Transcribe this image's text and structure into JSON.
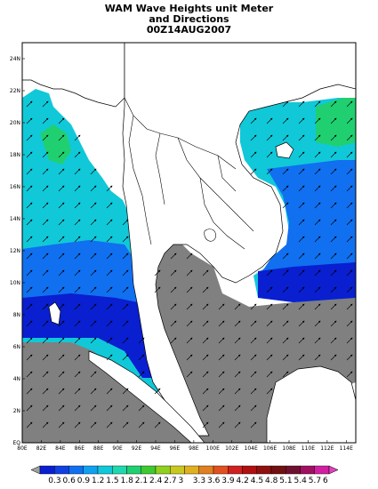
{
  "title": {
    "line1": "WAM Wave Heights unit Meter",
    "line2": "and Directions",
    "line3": "00Z14AUG2007"
  },
  "axes": {
    "lon_ticks": [
      "80E",
      "82E",
      "84E",
      "86E",
      "88E",
      "90E",
      "92E",
      "94E",
      "96E",
      "98E",
      "100E",
      "102E",
      "104E",
      "106E",
      "108E",
      "110E",
      "112E",
      "114E"
    ],
    "lat_ticks": [
      "EQ",
      "2N",
      "4N",
      "6N",
      "8N",
      "10N",
      "12N",
      "14N",
      "16N",
      "18N",
      "20N",
      "22N",
      "24N"
    ],
    "lon_range": [
      80,
      115
    ],
    "lat_range": [
      0,
      25
    ]
  },
  "colorbar": {
    "labels": [
      "0.3",
      "0.6",
      "0.9",
      "1.2",
      "1.5",
      "1.8",
      "2.1",
      "2.4",
      "2.7",
      "3",
      "3.3",
      "3.6",
      "3.9",
      "4.2",
      "4.5",
      "4.8",
      "5.1",
      "5.4",
      "5.7",
      "6"
    ],
    "colors": [
      "#0a1fd0",
      "#1040e0",
      "#1070f0",
      "#10a0f0",
      "#10c8d8",
      "#20d8b0",
      "#20d070",
      "#40c830",
      "#90d020",
      "#c8c820",
      "#e0b020",
      "#e08020",
      "#e05020",
      "#d02020",
      "#b01010",
      "#901010",
      "#701010",
      "#701030",
      "#a01060",
      "#d020a0"
    ]
  },
  "map_colors": {
    "land": "#ffffff",
    "masked": "#808080",
    "band_low": "#0a1fd0",
    "band_mid": "#1070f0",
    "band_high": "#10c8d8",
    "band_peak": "#20d070"
  }
}
